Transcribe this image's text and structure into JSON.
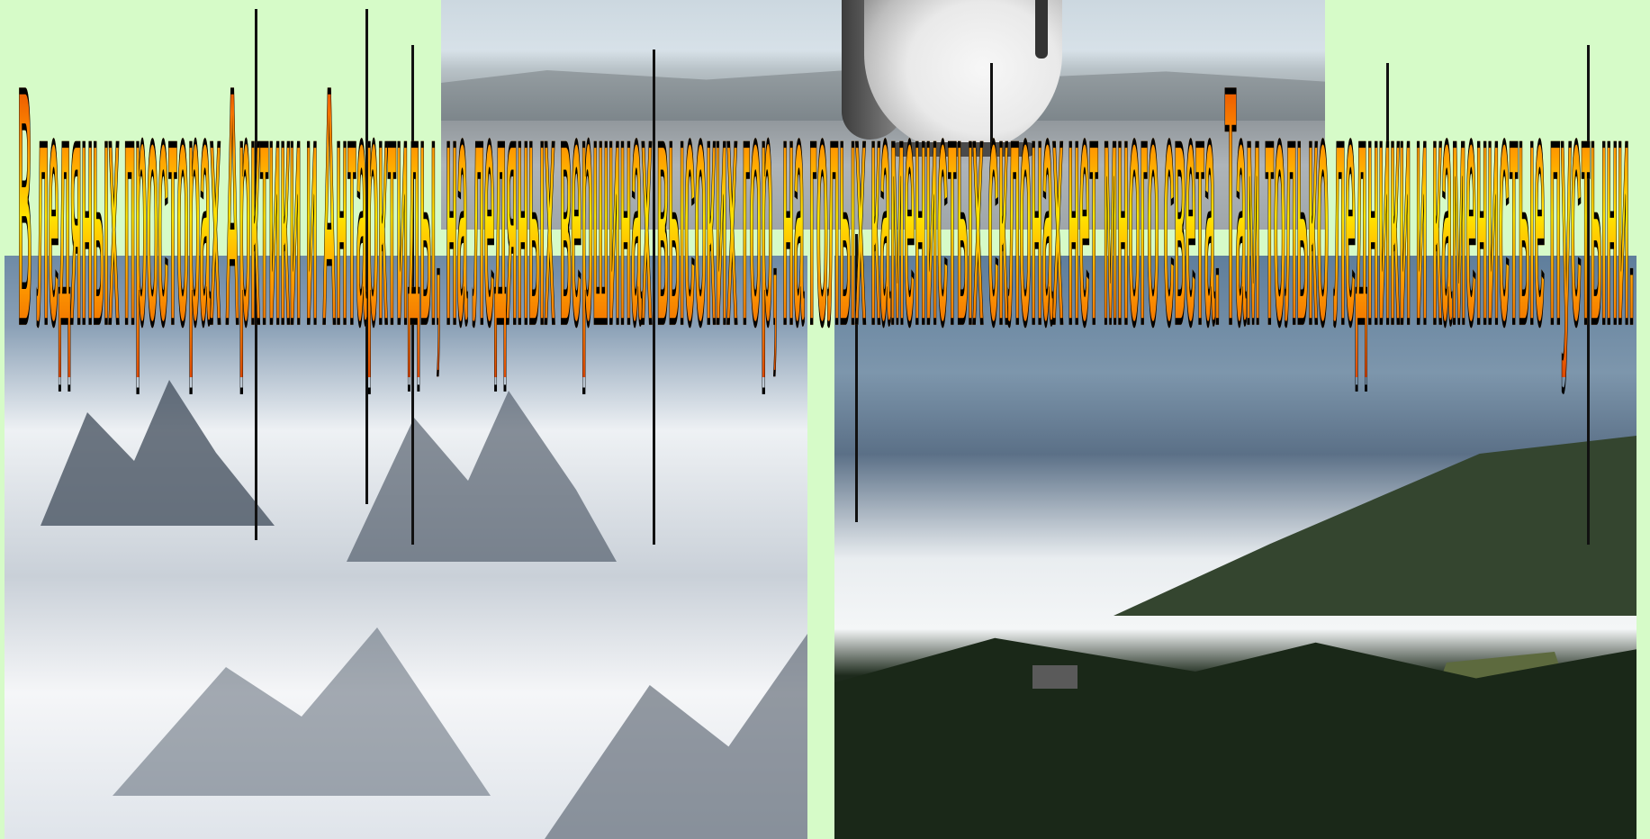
{
  "slide": {
    "headline": "В ледяных просторах Арктики и Антарктиды, на ледяных вершинах высоких гор, на голых каменистых склонах нет много света. Там только ледники и каменистые пустыни."
  },
  "photos": {
    "penguin": "penguin-photo",
    "mountains": "snowy-mountains-photo",
    "valley": "forested-valley-photo"
  },
  "colors": {
    "background": "#d6fbc8",
    "text_fill_top": "#d62a00",
    "text_fill_mid": "#ffe300",
    "text_outline": "#000000"
  }
}
